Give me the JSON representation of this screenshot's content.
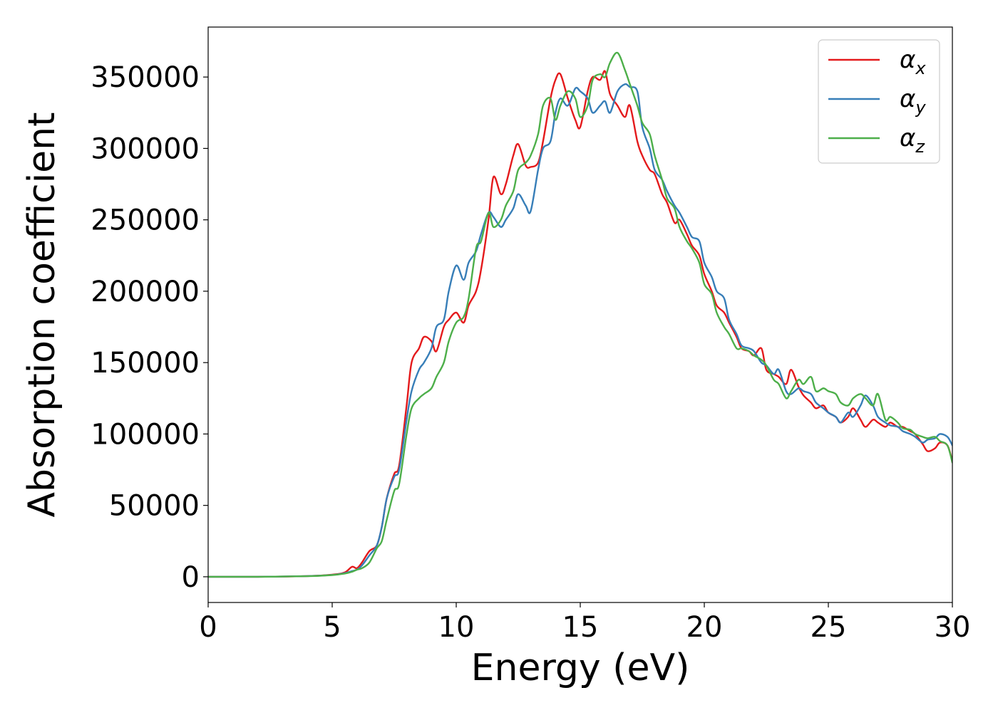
{
  "chart_data": {
    "type": "line",
    "title": "",
    "xlabel": "Energy (eV)",
    "ylabel": "Absorption coefficient",
    "xlim": [
      0,
      30
    ],
    "ylim": [
      -18000,
      385000
    ],
    "xticks": [
      0,
      5,
      10,
      15,
      20,
      25,
      30
    ],
    "xtick_labels": [
      "0",
      "5",
      "10",
      "15",
      "20",
      "25",
      "30"
    ],
    "yticks": [
      0,
      50000,
      100000,
      150000,
      200000,
      250000,
      300000,
      350000
    ],
    "ytick_labels": [
      "0",
      "50000",
      "100000",
      "150000",
      "200000",
      "250000",
      "300000",
      "350000"
    ],
    "grid": false,
    "legend_position": "top-right",
    "series": [
      {
        "name": "αx",
        "legend_base": "α",
        "legend_sub": "x",
        "color": "#e41a1c",
        "x": [
          0,
          2,
          4,
          5,
          5.5,
          5.8,
          6.0,
          6.2,
          6.5,
          6.8,
          7.0,
          7.2,
          7.5,
          7.7,
          8.0,
          8.2,
          8.5,
          8.7,
          9.0,
          9.2,
          9.5,
          9.7,
          10.0,
          10.3,
          10.5,
          10.8,
          11.0,
          11.3,
          11.5,
          11.8,
          12.0,
          12.3,
          12.5,
          12.8,
          13.0,
          13.3,
          13.5,
          13.8,
          14.0,
          14.2,
          14.5,
          14.8,
          15.0,
          15.3,
          15.5,
          15.8,
          16.0,
          16.2,
          16.5,
          16.8,
          17.0,
          17.3,
          17.5,
          17.8,
          18.0,
          18.3,
          18.5,
          18.8,
          19.0,
          19.3,
          19.5,
          19.8,
          20.0,
          20.3,
          20.5,
          20.8,
          21.0,
          21.3,
          21.5,
          21.8,
          22.0,
          22.3,
          22.5,
          22.8,
          23.0,
          23.3,
          23.5,
          23.8,
          24.0,
          24.3,
          24.5,
          24.8,
          25.0,
          25.3,
          25.5,
          25.8,
          26.0,
          26.3,
          26.5,
          26.8,
          27.0,
          27.3,
          27.5,
          27.8,
          28.0,
          28.3,
          28.5,
          28.8,
          29.0,
          29.3,
          29.5,
          29.8,
          30.0
        ],
        "y": [
          0,
          0,
          500,
          1500,
          3000,
          7000,
          6000,
          10000,
          18000,
          22000,
          35000,
          55000,
          72000,
          78000,
          120000,
          150000,
          160000,
          168000,
          165000,
          158000,
          175000,
          180000,
          185000,
          178000,
          190000,
          200000,
          215000,
          250000,
          280000,
          268000,
          275000,
          295000,
          303000,
          288000,
          287000,
          290000,
          305000,
          335000,
          348000,
          352000,
          335000,
          320000,
          315000,
          340000,
          350000,
          348000,
          354000,
          338000,
          330000,
          322000,
          330000,
          305000,
          295000,
          285000,
          282000,
          268000,
          262000,
          248000,
          250000,
          240000,
          232000,
          225000,
          212000,
          200000,
          190000,
          185000,
          178000,
          168000,
          160000,
          158000,
          155000,
          160000,
          145000,
          142000,
          140000,
          135000,
          145000,
          133000,
          127000,
          122000,
          118000,
          120000,
          115000,
          112000,
          108000,
          112000,
          118000,
          110000,
          105000,
          110000,
          108000,
          105000,
          108000,
          105000,
          105000,
          102000,
          100000,
          93000,
          88000,
          90000,
          94000,
          92000,
          81000
        ]
      },
      {
        "name": "αy",
        "legend_base": "α",
        "legend_sub": "y",
        "color": "#377eb8",
        "x": [
          0,
          2,
          4,
          5,
          5.5,
          5.8,
          6.0,
          6.2,
          6.5,
          6.8,
          7.0,
          7.2,
          7.5,
          7.7,
          8.0,
          8.2,
          8.5,
          8.7,
          9.0,
          9.2,
          9.5,
          9.7,
          10.0,
          10.3,
          10.5,
          10.8,
          11.0,
          11.3,
          11.5,
          11.8,
          12.0,
          12.3,
          12.5,
          12.8,
          13.0,
          13.3,
          13.5,
          13.8,
          14.0,
          14.2,
          14.5,
          14.8,
          15.0,
          15.3,
          15.5,
          15.8,
          16.0,
          16.2,
          16.5,
          16.8,
          17.0,
          17.3,
          17.5,
          17.8,
          18.0,
          18.3,
          18.5,
          18.8,
          19.0,
          19.3,
          19.5,
          19.8,
          20.0,
          20.3,
          20.5,
          20.8,
          21.0,
          21.3,
          21.5,
          21.8,
          22.0,
          22.3,
          22.5,
          22.8,
          23.0,
          23.3,
          23.5,
          23.8,
          24.0,
          24.3,
          24.5,
          24.8,
          25.0,
          25.3,
          25.5,
          25.8,
          26.0,
          26.3,
          26.5,
          26.8,
          27.0,
          27.3,
          27.5,
          27.8,
          28.0,
          28.3,
          28.5,
          28.8,
          29.0,
          29.3,
          29.5,
          29.8,
          30.0
        ],
        "y": [
          0,
          0,
          500,
          1300,
          2500,
          4000,
          5000,
          8000,
          15000,
          22000,
          35000,
          55000,
          70000,
          75000,
          110000,
          130000,
          145000,
          150000,
          160000,
          175000,
          180000,
          200000,
          218000,
          208000,
          220000,
          228000,
          240000,
          255000,
          252000,
          245000,
          250000,
          258000,
          268000,
          260000,
          256000,
          285000,
          300000,
          305000,
          325000,
          335000,
          330000,
          342000,
          340000,
          335000,
          325000,
          330000,
          333000,
          325000,
          340000,
          345000,
          343000,
          340000,
          315000,
          300000,
          285000,
          278000,
          270000,
          260000,
          255000,
          245000,
          238000,
          235000,
          220000,
          210000,
          200000,
          195000,
          180000,
          170000,
          162000,
          160000,
          158000,
          150000,
          148000,
          142000,
          145000,
          130000,
          128000,
          132000,
          130000,
          128000,
          122000,
          118000,
          115000,
          112000,
          108000,
          115000,
          112000,
          120000,
          127000,
          120000,
          112000,
          108000,
          106000,
          105000,
          102000,
          100000,
          98000,
          94000,
          96000,
          97000,
          100000,
          98000,
          92000
        ]
      },
      {
        "name": "αz",
        "legend_base": "α",
        "legend_sub": "z",
        "color": "#4daf4a",
        "x": [
          0,
          2,
          4,
          5,
          5.5,
          5.8,
          6.0,
          6.2,
          6.5,
          6.8,
          7.0,
          7.2,
          7.5,
          7.7,
          8.0,
          8.2,
          8.5,
          8.7,
          9.0,
          9.2,
          9.5,
          9.7,
          10.0,
          10.3,
          10.5,
          10.8,
          11.0,
          11.3,
          11.5,
          11.8,
          12.0,
          12.3,
          12.5,
          12.8,
          13.0,
          13.3,
          13.5,
          13.8,
          14.0,
          14.2,
          14.5,
          14.8,
          15.0,
          15.3,
          15.5,
          15.8,
          16.0,
          16.2,
          16.5,
          16.8,
          17.0,
          17.3,
          17.5,
          17.8,
          18.0,
          18.3,
          18.5,
          18.8,
          19.0,
          19.3,
          19.5,
          19.8,
          20.0,
          20.3,
          20.5,
          20.8,
          21.0,
          21.3,
          21.5,
          21.8,
          22.0,
          22.3,
          22.5,
          22.8,
          23.0,
          23.3,
          23.5,
          23.8,
          24.0,
          24.3,
          24.5,
          24.8,
          25.0,
          25.3,
          25.5,
          25.8,
          26.0,
          26.3,
          26.5,
          26.8,
          27.0,
          27.3,
          27.5,
          27.8,
          28.0,
          28.3,
          28.5,
          28.8,
          29.0,
          29.3,
          29.5,
          29.8,
          30.0
        ],
        "y": [
          0,
          0,
          400,
          1200,
          2200,
          3500,
          5000,
          6000,
          10000,
          20000,
          25000,
          40000,
          60000,
          65000,
          100000,
          118000,
          125000,
          128000,
          132000,
          140000,
          150000,
          165000,
          178000,
          182000,
          195000,
          230000,
          235000,
          255000,
          245000,
          250000,
          260000,
          270000,
          285000,
          290000,
          295000,
          310000,
          330000,
          335000,
          320000,
          330000,
          340000,
          335000,
          322000,
          330000,
          348000,
          352000,
          350000,
          360000,
          367000,
          355000,
          345000,
          330000,
          318000,
          310000,
          295000,
          278000,
          265000,
          258000,
          245000,
          235000,
          230000,
          220000,
          205000,
          198000,
          185000,
          175000,
          170000,
          160000,
          160000,
          158000,
          155000,
          152000,
          148000,
          138000,
          135000,
          125000,
          130000,
          138000,
          135000,
          140000,
          130000,
          132000,
          130000,
          128000,
          122000,
          120000,
          125000,
          128000,
          125000,
          120000,
          128000,
          110000,
          112000,
          108000,
          104000,
          103000,
          100000,
          98000,
          97000,
          98000,
          95000,
          92000,
          80000
        ]
      }
    ]
  }
}
